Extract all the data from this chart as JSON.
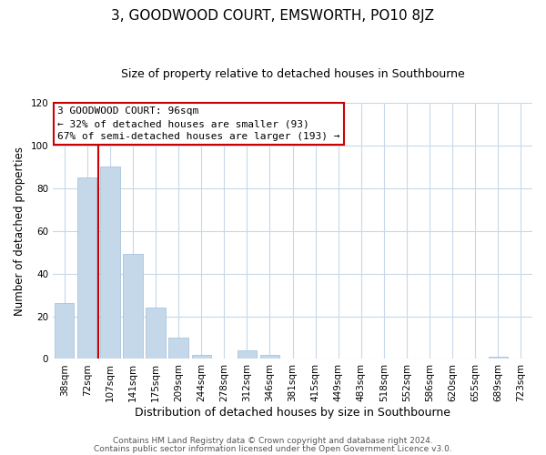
{
  "title": "3, GOODWOOD COURT, EMSWORTH, PO10 8JZ",
  "subtitle": "Size of property relative to detached houses in Southbourne",
  "xlabel": "Distribution of detached houses by size in Southbourne",
  "ylabel": "Number of detached properties",
  "bar_labels": [
    "38sqm",
    "72sqm",
    "107sqm",
    "141sqm",
    "175sqm",
    "209sqm",
    "244sqm",
    "278sqm",
    "312sqm",
    "346sqm",
    "381sqm",
    "415sqm",
    "449sqm",
    "483sqm",
    "518sqm",
    "552sqm",
    "586sqm",
    "620sqm",
    "655sqm",
    "689sqm",
    "723sqm"
  ],
  "bar_values": [
    26,
    85,
    90,
    49,
    24,
    10,
    2,
    0,
    4,
    2,
    0,
    0,
    0,
    0,
    0,
    0,
    0,
    0,
    0,
    1,
    0
  ],
  "bar_color": "#c5d8ea",
  "bar_edge_color": "#a8c4dc",
  "vline_color": "#cc0000",
  "vline_x_index": 2,
  "ylim": [
    0,
    120
  ],
  "yticks": [
    0,
    20,
    40,
    60,
    80,
    100,
    120
  ],
  "annotation_title": "3 GOODWOOD COURT: 96sqm",
  "annotation_line1": "← 32% of detached houses are smaller (93)",
  "annotation_line2": "67% of semi-detached houses are larger (193) →",
  "annotation_box_color": "#ffffff",
  "annotation_box_edgecolor": "#cc0000",
  "footnote1": "Contains HM Land Registry data © Crown copyright and database right 2024.",
  "footnote2": "Contains public sector information licensed under the Open Government Licence v3.0.",
  "background_color": "#ffffff",
  "grid_color": "#c8d8e8",
  "title_fontsize": 11,
  "subtitle_fontsize": 9,
  "xlabel_fontsize": 9,
  "ylabel_fontsize": 8.5,
  "tick_fontsize": 7.5,
  "annotation_fontsize": 8,
  "footnote_fontsize": 6.5
}
